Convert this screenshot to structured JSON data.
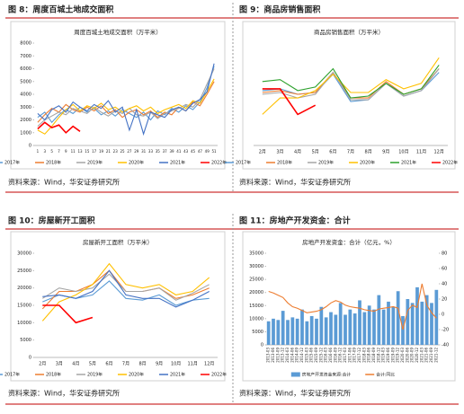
{
  "captions": [
    "图 8：周度百城土地成交面积",
    "图 9：商品房销售面积",
    "图 10：房屋新开工面积",
    "图 11：房地产开发资金：合计"
  ],
  "sources": [
    "资料来源：Wind，华安证券研究所",
    "资料来源：Wind，华安证券研究所",
    "资料来源：Wind，华安证券研究所",
    "资料来源：Wind，华安证券研究所"
  ],
  "chart_data": [
    {
      "type": "line",
      "title": "周度百城土地成交面积（万平米）",
      "categories": [
        "1",
        "3",
        "5",
        "7",
        "9",
        "11",
        "13",
        "15",
        "17",
        "19",
        "21",
        "23",
        "25",
        "27",
        "29",
        "31",
        "33",
        "35",
        "37",
        "39",
        "41",
        "43",
        "45",
        "47",
        "49",
        "51"
      ],
      "ylim": [
        0,
        8000
      ],
      "yticks": [
        0,
        1000,
        2000,
        3000,
        4000,
        5000,
        6000,
        7000,
        8000
      ],
      "series": [
        {
          "name": "2017年",
          "color": "#5b9bd5",
          "values": [
            2200,
            2600,
            1800,
            2400,
            2800,
            2500,
            3000,
            2600,
            2900,
            2400,
            2700,
            2300,
            2800,
            2500,
            2200,
            2600,
            2000,
            2700,
            2400,
            2900,
            2600,
            3100,
            2800,
            3400,
            4500,
            6200
          ]
        },
        {
          "name": "2018年",
          "color": "#ed7d31",
          "values": [
            1800,
            2400,
            2900,
            2600,
            3200,
            2800,
            2600,
            3000,
            2700,
            3100,
            2500,
            2800,
            2200,
            2600,
            2800,
            2400,
            2700,
            2200,
            2600,
            2400,
            3000,
            2700,
            3400,
            3100,
            4000,
            5000
          ]
        },
        {
          "name": "2019年",
          "color": "#a5a5a5",
          "values": [
            1500,
            2000,
            2300,
            2600,
            2400,
            2900,
            2700,
            2500,
            3000,
            2600,
            2300,
            2700,
            2500,
            2900,
            2400,
            2300,
            2600,
            2100,
            2500,
            2700,
            2900,
            3200,
            3000,
            3600,
            4800,
            6000
          ]
        },
        {
          "name": "2020年",
          "color": "#ffc000",
          "values": [
            1200,
            900,
            1500,
            2200,
            2800,
            3200,
            2700,
            3100,
            2900,
            3300,
            2800,
            3000,
            2600,
            2900,
            3100,
            2700,
            3000,
            2500,
            2800,
            3000,
            3200,
            2900,
            3500,
            3300,
            4200,
            5200
          ]
        },
        {
          "name": "2021年",
          "color": "#4472c4",
          "values": [
            2500,
            2000,
            2800,
            3100,
            2600,
            3400,
            3000,
            2700,
            3200,
            2900,
            3500,
            2600,
            3000,
            1200,
            2800,
            900,
            2600,
            2400,
            2200,
            2800,
            3000,
            2700,
            3300,
            3600,
            4200,
            6400
          ]
        },
        {
          "name": "2022年",
          "color": "#ff0000",
          "values": [
            1300,
            1800,
            1400,
            1600,
            1000,
            1500,
            1100,
            null,
            null,
            null,
            null,
            null,
            null,
            null,
            null,
            null,
            null,
            null,
            null,
            null,
            null,
            null,
            null,
            null,
            null,
            null
          ]
        }
      ]
    },
    {
      "type": "line",
      "title": "商品房销售面积（万平米）",
      "categories": [
        "2月",
        "3月",
        "4月",
        "5月",
        "6月",
        "7月",
        "8月",
        "9月",
        "10月",
        "11月",
        "12月"
      ],
      "ylim": [
        0,
        28000
      ],
      "series": [
        {
          "name": "2017年",
          "color": "#5b9bd5",
          "values": [
            15000,
            15500,
            14000,
            14500,
            19500,
            12000,
            12500,
            17000,
            13500,
            15000,
            20000
          ]
        },
        {
          "name": "2018年",
          "color": "#ed7d31",
          "values": [
            14500,
            15000,
            14000,
            14500,
            20000,
            13000,
            13000,
            17500,
            14000,
            15500,
            21000
          ]
        },
        {
          "name": "2019年",
          "color": "#a5a5a5",
          "values": [
            14000,
            14500,
            13000,
            14000,
            20000,
            12500,
            12500,
            17000,
            13500,
            15000,
            21000
          ]
        },
        {
          "name": "2020年",
          "color": "#ffc000",
          "values": [
            8500,
            13000,
            13000,
            15000,
            19500,
            14500,
            14500,
            18000,
            15500,
            17000,
            24000
          ]
        },
        {
          "name": "2021年",
          "color": "#2ca02c",
          "values": [
            17500,
            18000,
            15000,
            16000,
            21000,
            13000,
            13500,
            17000,
            14000,
            15500,
            22000
          ]
        },
        {
          "name": "2022年",
          "color": "#ff0000",
          "values": [
            15500,
            15500,
            8500,
            11000,
            null,
            null,
            null,
            null,
            null,
            null,
            null
          ]
        }
      ]
    },
    {
      "type": "line",
      "title": "房屋新开工面积（万平米）",
      "categories": [
        "2月",
        "3月",
        "4月",
        "5月",
        "6月",
        "7月",
        "8月",
        "9月",
        "10月",
        "11月",
        "12月"
      ],
      "ylim": [
        0,
        30000
      ],
      "yticks": [
        0,
        5000,
        10000,
        15000,
        20000,
        25000,
        30000
      ],
      "series": [
        {
          "name": "2017年",
          "color": "#5b9bd5",
          "values": [
            16000,
            18000,
            17000,
            18000,
            22000,
            17000,
            16500,
            18000,
            15000,
            16500,
            17000
          ]
        },
        {
          "name": "2018年",
          "color": "#ed7d31",
          "values": [
            14000,
            19000,
            19000,
            21000,
            25000,
            19000,
            19000,
            20000,
            17000,
            18000,
            20000
          ]
        },
        {
          "name": "2019年",
          "color": "#a5a5a5",
          "values": [
            17000,
            20000,
            19000,
            20000,
            24000,
            19000,
            19000,
            20000,
            16500,
            18500,
            21000
          ]
        },
        {
          "name": "2020年",
          "color": "#ffc000",
          "values": [
            10500,
            16000,
            18000,
            21000,
            27000,
            21000,
            20000,
            21000,
            18000,
            19000,
            23000
          ]
        },
        {
          "name": "2021年",
          "color": "#4472c4",
          "values": [
            17500,
            18000,
            17000,
            19000,
            25000,
            18000,
            17000,
            17000,
            14500,
            16500,
            19000
          ]
        },
        {
          "name": "2022年",
          "color": "#ff0000",
          "values": [
            15000,
            15000,
            10000,
            11500,
            null,
            null,
            null,
            null,
            null,
            null,
            null
          ]
        }
      ]
    },
    {
      "type": "combo",
      "title": "房地产开发资金：合计（亿元，%）",
      "categories": [
        "2013-03",
        "2013-06",
        "2013-09",
        "2013-12",
        "2014-03",
        "2014-06",
        "2014-09",
        "2014-12",
        "2015-03",
        "2015-06",
        "2015-09",
        "2015-12",
        "2016-03",
        "2016-06",
        "2016-09",
        "2016-12",
        "2017-03",
        "2017-06",
        "2017-09",
        "2017-12",
        "2018-03",
        "2018-06",
        "2018-09",
        "2018-12",
        "2019-03",
        "2019-06",
        "2019-09",
        "2019-12",
        "2020-03",
        "2020-06",
        "2020-09",
        "2020-12",
        "2021-03",
        "2021-06",
        "2021-09",
        "2021-12"
      ],
      "ylim": [
        0,
        35000
      ],
      "yticks": [
        0,
        5000,
        10000,
        15000,
        20000,
        25000,
        30000,
        35000
      ],
      "y2lim": [
        -40,
        80
      ],
      "y2ticks": [
        -40,
        -20,
        0,
        20,
        40,
        60,
        80
      ],
      "series": [
        {
          "name": "房地产开发资金来源:合计",
          "type": "bar",
          "color": "#5b9bd5",
          "values": [
            9000,
            10000,
            9500,
            13000,
            9500,
            10500,
            10000,
            13500,
            9000,
            11000,
            10000,
            14500,
            10500,
            12500,
            11500,
            16000,
            11500,
            13500,
            12000,
            17000,
            12500,
            15000,
            13500,
            19000,
            13500,
            16500,
            14500,
            20500,
            11000,
            17500,
            16000,
            22000,
            16500,
            19000,
            16000,
            21000
          ]
        },
        {
          "name": "合计:同比",
          "type": "line",
          "axis": "y2",
          "color": "#ed7d31",
          "values": [
            30,
            28,
            25,
            22,
            15,
            10,
            8,
            5,
            2,
            3,
            4,
            6,
            10,
            15,
            18,
            16,
            12,
            10,
            9,
            8,
            6,
            5,
            4,
            7,
            8,
            9,
            10,
            8,
            -20,
            5,
            12,
            9,
            40,
            12,
            2,
            -5
          ]
        }
      ]
    }
  ]
}
